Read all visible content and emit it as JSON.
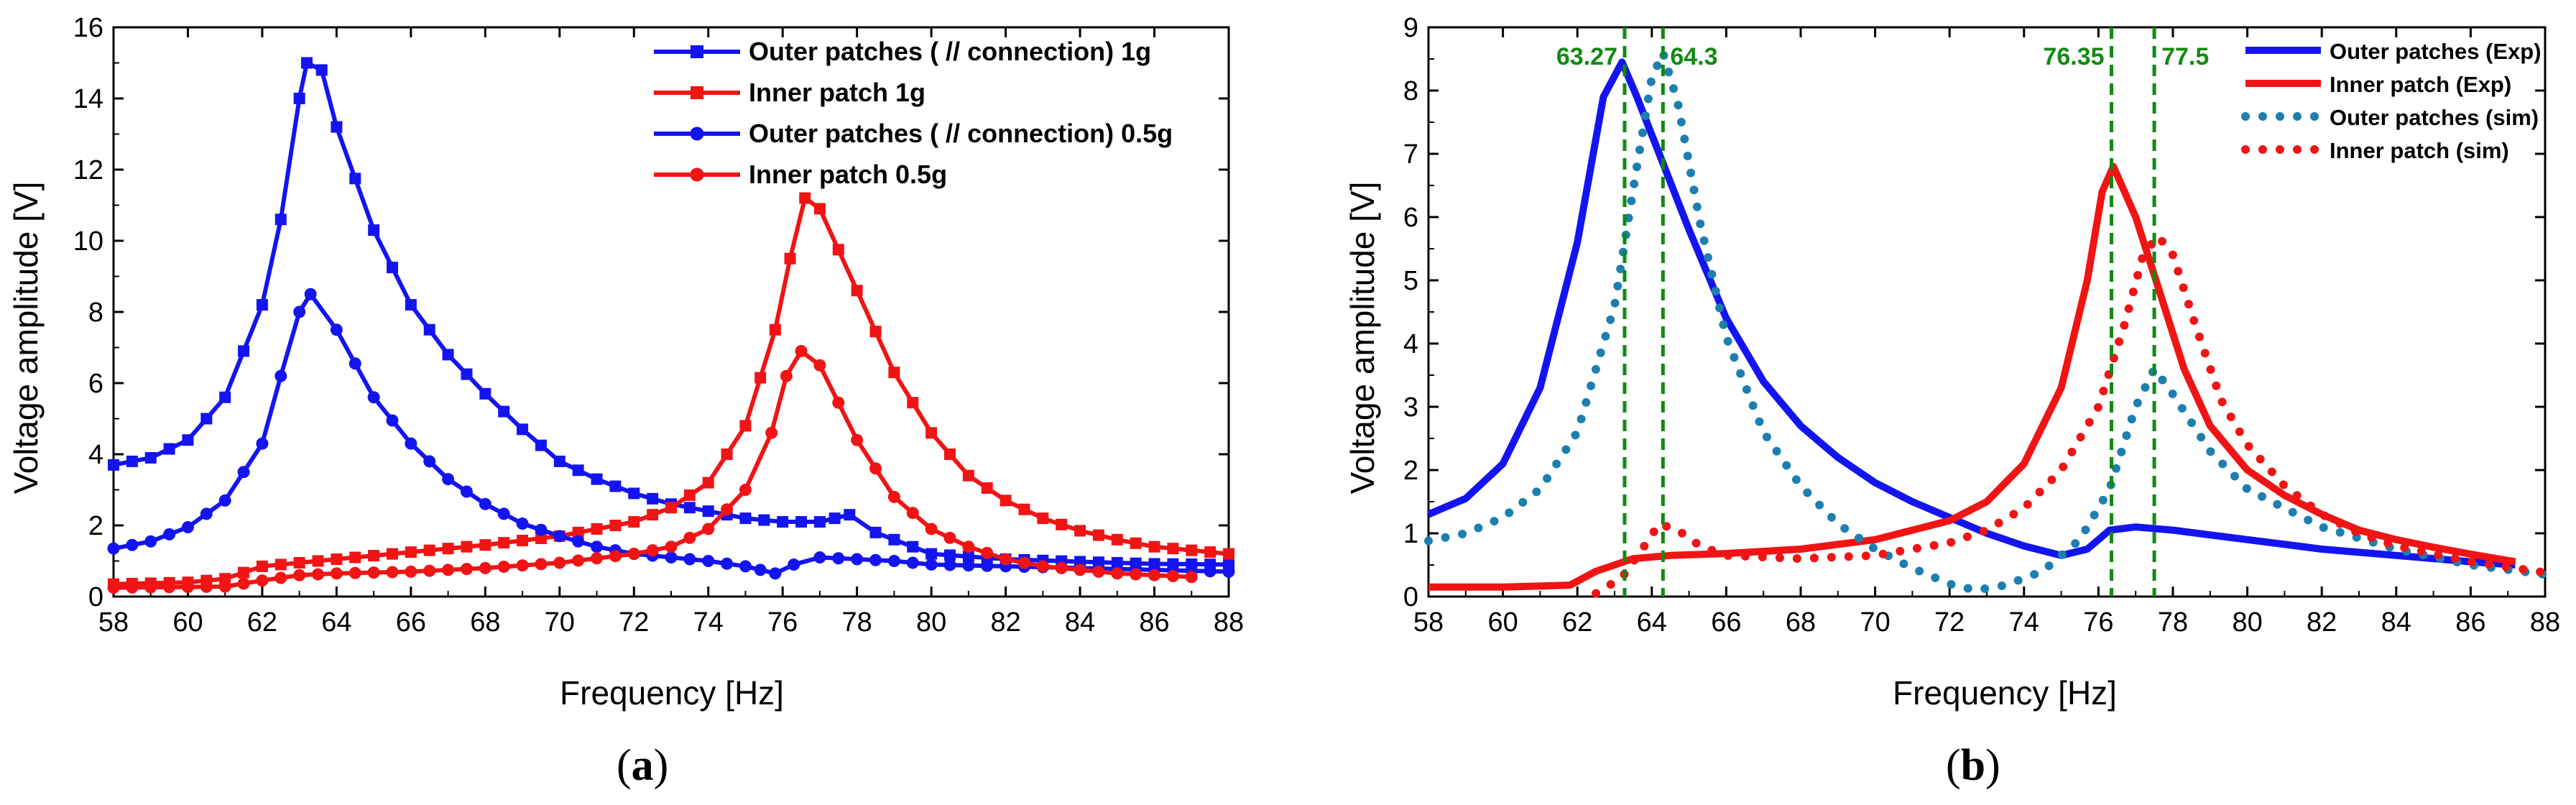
{
  "colors": {
    "blue": "#1414f0",
    "red": "#f01414",
    "teal": "#1c7fb0",
    "green": "#128a12",
    "axis": "#000000"
  },
  "figure": {
    "panel_a_label": "a",
    "panel_b_label": "b"
  },
  "chart_data": [
    {
      "type": "line",
      "panel": "a",
      "xlabel": "Frequency [Hz]",
      "ylabel": "Voltage amplitude [V]",
      "xlim": [
        58,
        88
      ],
      "ylim": [
        0,
        16
      ],
      "xticks": [
        58,
        60,
        62,
        64,
        66,
        68,
        70,
        72,
        74,
        76,
        78,
        80,
        82,
        84,
        86,
        88
      ],
      "yticks": [
        0,
        2,
        4,
        6,
        8,
        10,
        12,
        14,
        16
      ],
      "legend_position": "top-right",
      "series": [
        {
          "name": "Outer patches ( // connection) 1g",
          "color": "blue",
          "marker": "square",
          "points": [
            [
              58,
              3.7
            ],
            [
              59,
              3.9
            ],
            [
              60,
              4.4
            ],
            [
              61,
              5.6
            ],
            [
              62,
              8.2
            ],
            [
              62.5,
              10.6
            ],
            [
              63,
              14.0
            ],
            [
              63.2,
              15.0
            ],
            [
              63.6,
              14.8
            ],
            [
              64,
              13.2
            ],
            [
              65,
              10.3
            ],
            [
              66,
              8.2
            ],
            [
              67,
              6.8
            ],
            [
              68,
              5.7
            ],
            [
              69,
              4.7
            ],
            [
              70,
              3.8
            ],
            [
              71,
              3.3
            ],
            [
              72,
              2.9
            ],
            [
              73,
              2.6
            ],
            [
              74,
              2.4
            ],
            [
              75,
              2.2
            ],
            [
              76,
              2.1
            ],
            [
              77,
              2.1
            ],
            [
              77.8,
              2.3
            ],
            [
              78.5,
              1.8
            ],
            [
              80,
              1.2
            ],
            [
              82,
              1.05
            ],
            [
              84,
              0.98
            ],
            [
              86,
              0.92
            ],
            [
              88,
              0.9
            ]
          ]
        },
        {
          "name": "Inner patch 1g",
          "color": "red",
          "marker": "square",
          "points": [
            [
              58,
              0.35
            ],
            [
              60,
              0.4
            ],
            [
              61,
              0.5
            ],
            [
              62,
              0.85
            ],
            [
              64,
              1.05
            ],
            [
              66,
              1.25
            ],
            [
              68,
              1.45
            ],
            [
              70,
              1.7
            ],
            [
              72,
              2.1
            ],
            [
              73,
              2.5
            ],
            [
              74,
              3.2
            ],
            [
              75,
              4.8
            ],
            [
              75.8,
              7.5
            ],
            [
              76.2,
              9.5
            ],
            [
              76.6,
              11.2
            ],
            [
              77,
              10.9
            ],
            [
              78,
              8.6
            ],
            [
              79,
              6.3
            ],
            [
              80,
              4.6
            ],
            [
              81,
              3.4
            ],
            [
              82,
              2.7
            ],
            [
              83,
              2.2
            ],
            [
              84,
              1.85
            ],
            [
              85,
              1.6
            ],
            [
              86,
              1.4
            ],
            [
              87,
              1.3
            ],
            [
              88,
              1.2
            ]
          ]
        },
        {
          "name": "Outer patches ( // connection) 0.5g",
          "color": "blue",
          "marker": "circle",
          "points": [
            [
              58,
              1.35
            ],
            [
              59,
              1.55
            ],
            [
              60,
              1.95
            ],
            [
              61,
              2.7
            ],
            [
              62,
              4.3
            ],
            [
              62.5,
              6.2
            ],
            [
              63,
              8.0
            ],
            [
              63.3,
              8.5
            ],
            [
              64,
              7.5
            ],
            [
              65,
              5.6
            ],
            [
              66,
              4.3
            ],
            [
              67,
              3.3
            ],
            [
              68,
              2.6
            ],
            [
              69,
              2.05
            ],
            [
              70,
              1.7
            ],
            [
              71,
              1.4
            ],
            [
              72,
              1.2
            ],
            [
              73,
              1.1
            ],
            [
              74,
              1.0
            ],
            [
              75,
              0.85
            ],
            [
              75.8,
              0.65
            ],
            [
              76.3,
              0.9
            ],
            [
              77,
              1.1
            ],
            [
              78,
              1.05
            ],
            [
              79,
              1.0
            ],
            [
              80,
              0.9
            ],
            [
              82,
              0.85
            ],
            [
              84,
              0.8
            ],
            [
              86,
              0.75
            ],
            [
              88,
              0.7
            ]
          ]
        },
        {
          "name": "Inner patch 0.5g",
          "color": "red",
          "marker": "circle",
          "points": [
            [
              58,
              0.25
            ],
            [
              61,
              0.28
            ],
            [
              62,
              0.45
            ],
            [
              63,
              0.6
            ],
            [
              64,
              0.65
            ],
            [
              66,
              0.7
            ],
            [
              68,
              0.8
            ],
            [
              70,
              0.95
            ],
            [
              72,
              1.2
            ],
            [
              73,
              1.4
            ],
            [
              74,
              1.9
            ],
            [
              75,
              3.0
            ],
            [
              75.7,
              4.6
            ],
            [
              76.1,
              6.2
            ],
            [
              76.5,
              6.9
            ],
            [
              77,
              6.5
            ],
            [
              78,
              4.4
            ],
            [
              79,
              2.8
            ],
            [
              80,
              1.9
            ],
            [
              81,
              1.4
            ],
            [
              82,
              1.05
            ],
            [
              83,
              0.85
            ],
            [
              84,
              0.75
            ],
            [
              85,
              0.65
            ],
            [
              86,
              0.6
            ],
            [
              87,
              0.55
            ]
          ]
        }
      ]
    },
    {
      "type": "line",
      "panel": "b",
      "xlabel": "Frequency [Hz]",
      "ylabel": "Voltage amplitude [V]",
      "xlim": [
        58,
        88
      ],
      "ylim": [
        0,
        9
      ],
      "xticks": [
        58,
        60,
        62,
        64,
        66,
        68,
        70,
        72,
        74,
        76,
        78,
        80,
        82,
        84,
        86,
        88
      ],
      "yticks": [
        0,
        1,
        2,
        3,
        4,
        5,
        6,
        7,
        8,
        9
      ],
      "legend_position": "top-right",
      "vlines": [
        {
          "x": 63.27,
          "label": "63.27",
          "label_side": "left"
        },
        {
          "x": 64.3,
          "label": "64.3",
          "label_side": "right"
        },
        {
          "x": 76.35,
          "label": "76.35",
          "label_side": "left"
        },
        {
          "x": 77.5,
          "label": "77.5",
          "label_side": "right"
        }
      ],
      "series": [
        {
          "name": "Outer patches (Exp)",
          "color": "blue",
          "style": "solid",
          "points": [
            [
              58,
              1.3
            ],
            [
              59,
              1.55
            ],
            [
              60,
              2.1
            ],
            [
              61,
              3.3
            ],
            [
              62,
              5.6
            ],
            [
              62.7,
              7.9
            ],
            [
              63.2,
              8.45
            ],
            [
              63.6,
              7.9
            ],
            [
              64.2,
              7.0
            ],
            [
              65,
              5.8
            ],
            [
              66,
              4.4
            ],
            [
              67,
              3.4
            ],
            [
              68,
              2.7
            ],
            [
              69,
              2.2
            ],
            [
              70,
              1.8
            ],
            [
              71,
              1.5
            ],
            [
              72,
              1.25
            ],
            [
              73,
              1.0
            ],
            [
              74,
              0.8
            ],
            [
              75,
              0.65
            ],
            [
              75.7,
              0.75
            ],
            [
              76.3,
              1.05
            ],
            [
              77,
              1.1
            ],
            [
              78,
              1.05
            ],
            [
              80,
              0.9
            ],
            [
              82,
              0.75
            ],
            [
              84,
              0.65
            ],
            [
              86,
              0.55
            ],
            [
              87.2,
              0.5
            ]
          ]
        },
        {
          "name": "Inner patch (Exp)",
          "color": "red",
          "style": "solid",
          "points": [
            [
              58,
              0.15
            ],
            [
              60,
              0.15
            ],
            [
              61.8,
              0.18
            ],
            [
              62.5,
              0.4
            ],
            [
              63.5,
              0.6
            ],
            [
              64.5,
              0.65
            ],
            [
              66,
              0.68
            ],
            [
              68,
              0.75
            ],
            [
              70,
              0.9
            ],
            [
              72,
              1.2
            ],
            [
              73,
              1.5
            ],
            [
              74,
              2.1
            ],
            [
              75,
              3.3
            ],
            [
              75.7,
              5.0
            ],
            [
              76.1,
              6.4
            ],
            [
              76.4,
              6.8
            ],
            [
              77,
              6.0
            ],
            [
              77.6,
              4.9
            ],
            [
              78.3,
              3.6
            ],
            [
              79,
              2.7
            ],
            [
              80,
              2.0
            ],
            [
              81,
              1.6
            ],
            [
              82,
              1.3
            ],
            [
              83,
              1.05
            ],
            [
              84,
              0.9
            ],
            [
              85,
              0.78
            ],
            [
              86,
              0.67
            ],
            [
              87.2,
              0.55
            ]
          ]
        },
        {
          "name": "Outer patches (sim)",
          "color": "teal",
          "style": "dotted",
          "points": [
            [
              58,
              0.88
            ],
            [
              59,
              1.0
            ],
            [
              60,
              1.25
            ],
            [
              61,
              1.7
            ],
            [
              62,
              2.6
            ],
            [
              63,
              4.6
            ],
            [
              63.6,
              6.8
            ],
            [
              64,
              8.2
            ],
            [
              64.3,
              8.6
            ],
            [
              64.7,
              7.8
            ],
            [
              65.3,
              5.9
            ],
            [
              66,
              4.1
            ],
            [
              67,
              2.6
            ],
            [
              68,
              1.75
            ],
            [
              69,
              1.15
            ],
            [
              70,
              0.75
            ],
            [
              71,
              0.45
            ],
            [
              72,
              0.2
            ],
            [
              72.7,
              0.1
            ],
            [
              73.5,
              0.18
            ],
            [
              74.5,
              0.4
            ],
            [
              75.5,
              0.9
            ],
            [
              76.3,
              1.7
            ],
            [
              77,
              3.0
            ],
            [
              77.5,
              3.6
            ],
            [
              78,
              3.2
            ],
            [
              79,
              2.3
            ],
            [
              80,
              1.7
            ],
            [
              82,
              1.1
            ],
            [
              84,
              0.75
            ],
            [
              86,
              0.5
            ],
            [
              88,
              0.35
            ]
          ]
        },
        {
          "name": "Inner patch (sim)",
          "color": "red",
          "style": "dotted",
          "points": [
            [
              62.5,
              0.05
            ],
            [
              63.2,
              0.3
            ],
            [
              63.8,
              0.8
            ],
            [
              64.2,
              1.15
            ],
            [
              64.7,
              1.05
            ],
            [
              65.3,
              0.8
            ],
            [
              66,
              0.65
            ],
            [
              68,
              0.6
            ],
            [
              70,
              0.65
            ],
            [
              72,
              0.85
            ],
            [
              73,
              1.05
            ],
            [
              74,
              1.4
            ],
            [
              75,
              2.0
            ],
            [
              76,
              3.0
            ],
            [
              76.7,
              4.3
            ],
            [
              77.2,
              5.4
            ],
            [
              77.6,
              5.7
            ],
            [
              78,
              5.4
            ],
            [
              78.6,
              4.3
            ],
            [
              79.3,
              3.1
            ],
            [
              80,
              2.4
            ],
            [
              81,
              1.75
            ],
            [
              82,
              1.3
            ],
            [
              83,
              1.0
            ],
            [
              84,
              0.8
            ],
            [
              86,
              0.55
            ],
            [
              88,
              0.38
            ]
          ]
        }
      ]
    }
  ]
}
